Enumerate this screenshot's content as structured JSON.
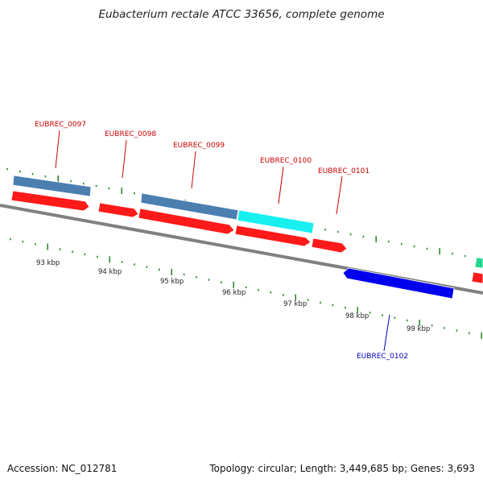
{
  "title": "Eubacterium rectale ATCC 33656, complete genome",
  "footer": {
    "accession": "Accession: NC_012781",
    "info": "Topology: circular; Length: 3,449,685 bp; Genes: 3,693"
  },
  "colors": {
    "backbone": "#808080",
    "tick": "#2e8b2e",
    "forward_cds": "#ff1a1a",
    "reverse_cds": "#0000ee",
    "gene_steelblue": "#4a7fb0",
    "gene_cyan": "#18f0f0",
    "gene_teal": "#20d890",
    "label_forward": "#cc0000",
    "label_reverse": "#0000bb"
  },
  "scale": {
    "unit": "kbp",
    "ticks": [
      {
        "label": "93 kbp"
      },
      {
        "label": "94 kbp"
      },
      {
        "label": "95 kbp"
      },
      {
        "label": "96 kbp"
      },
      {
        "label": "97 kbp"
      },
      {
        "label": "98 kbp"
      },
      {
        "label": "99 kbp"
      }
    ]
  },
  "genes": [
    {
      "name": "EUBREC_0097",
      "strand": "forward"
    },
    {
      "name": "EUBREC_0098",
      "strand": "forward"
    },
    {
      "name": "EUBREC_0099",
      "strand": "forward"
    },
    {
      "name": "EUBREC_0100",
      "strand": "forward"
    },
    {
      "name": "EUBREC_0101",
      "strand": "forward"
    },
    {
      "name": "EUBREC_0102",
      "strand": "reverse"
    }
  ]
}
